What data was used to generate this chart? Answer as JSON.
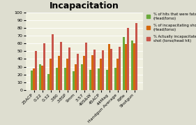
{
  "title": "Incapacitation",
  "categories": [
    "25ACP",
    "0.22",
    "0.32",
    ".380",
    ".38SP",
    "9mm",
    "3.57",
    "40S&W",
    "45ACP",
    "44Mag",
    "Handgun Average",
    "Rifle",
    "Shotgun"
  ],
  "fatal": [
    25,
    33,
    21,
    29,
    29,
    24,
    33,
    26,
    28,
    26,
    29,
    68,
    64
  ],
  "incapacitating": [
    28,
    31,
    40,
    44,
    40,
    33,
    44,
    45,
    40,
    59,
    40,
    59,
    60
  ],
  "one_shot": [
    50,
    60,
    72,
    62,
    55,
    47,
    61,
    52,
    51,
    53,
    56,
    80,
    86
  ],
  "color_fatal": "#6aaa3a",
  "color_incapacitating": "#d4680c",
  "color_one_shot": "#c8554a",
  "legend_fatal": "% of hits that were fatal\n(Head/torso)",
  "legend_incapacitating": "% of incapacitating shots\n(Head/torso)",
  "legend_one_shot": "% Actually incapacitated by one\nshot (torso/head hit)",
  "ylim": [
    0,
    100
  ],
  "yticks": [
    0,
    10,
    20,
    30,
    40,
    50,
    60,
    70,
    80,
    90,
    100
  ],
  "background_color": "#deded0",
  "plot_bg_color": "#f0f0e0",
  "grid_color": "#ffffff",
  "bar_width": 0.25,
  "title_fontsize": 9,
  "tick_fontsize": 4.5,
  "legend_fontsize": 3.8
}
